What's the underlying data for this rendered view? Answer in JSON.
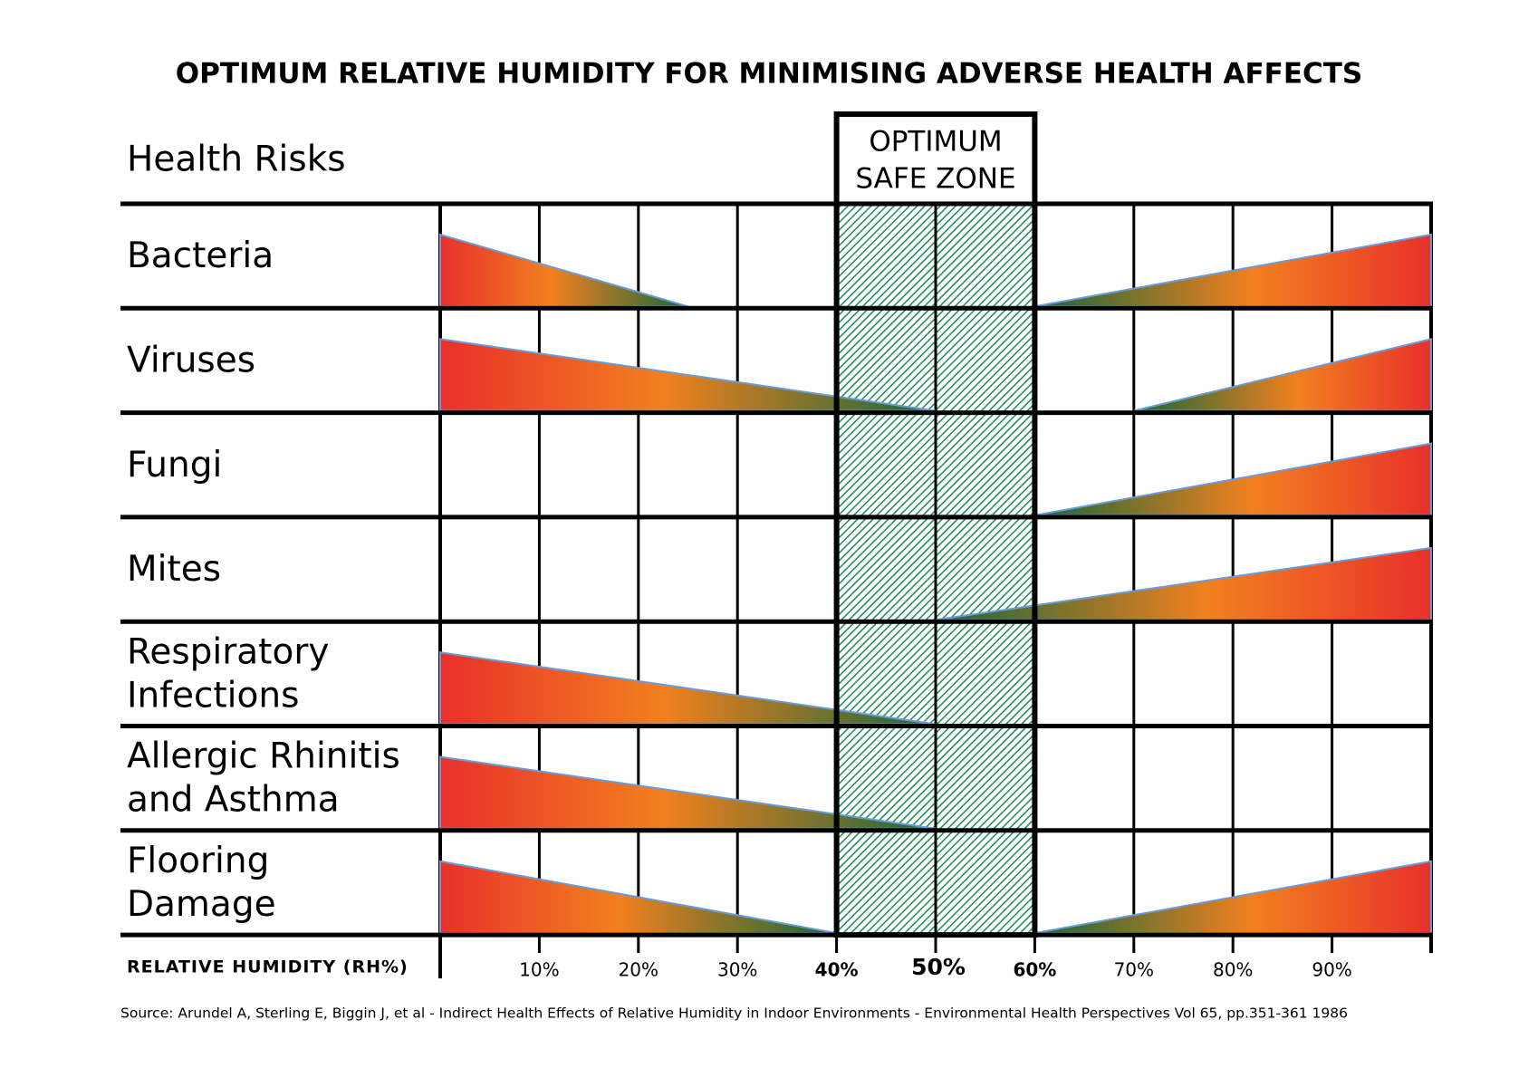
{
  "chart_data": {
    "type": "risk-wedge",
    "title": "OPTIMUM RELATIVE HUMIDITY FOR MINIMISING ADVERSE HEALTH AFFECTS",
    "row_header": "Health Risks",
    "zone_label": [
      "OPTIMUM",
      "SAFE ZONE"
    ],
    "optimum_zone": [
      40,
      60
    ],
    "zone_color": "#1a8a5a",
    "xlabel": "RELATIVE HUMIDITY (RH%)",
    "xlim": [
      0,
      100
    ],
    "xticks": [
      {
        "value": 10,
        "label": "10%"
      },
      {
        "value": 20,
        "label": "20%"
      },
      {
        "value": 30,
        "label": "30%"
      },
      {
        "value": 40,
        "label": "40%"
      },
      {
        "value": 50,
        "label": "50%"
      },
      {
        "value": 60,
        "label": "60%"
      },
      {
        "value": 70,
        "label": "70%"
      },
      {
        "value": 80,
        "label": "80%"
      },
      {
        "value": 90,
        "label": "90%"
      }
    ],
    "grid": true,
    "colors": [
      "#e8302a",
      "#f2801f",
      "#17683a"
    ],
    "rows": [
      {
        "label": [
          "Bacteria"
        ],
        "ranges": [
          [
            0,
            25
          ],
          [
            60,
            100
          ]
        ]
      },
      {
        "label": [
          "Viruses"
        ],
        "ranges": [
          [
            0,
            50
          ],
          [
            70,
            100
          ]
        ]
      },
      {
        "label": [
          "Fungi"
        ],
        "ranges": [
          [
            60,
            100
          ]
        ]
      },
      {
        "label": [
          "Mites"
        ],
        "ranges": [
          [
            50,
            100
          ]
        ]
      },
      {
        "label": [
          "Respiratory",
          "Infections"
        ],
        "ranges": [
          [
            0,
            50
          ]
        ]
      },
      {
        "label": [
          "Allergic Rhinitis",
          "and Asthma"
        ],
        "ranges": [
          [
            0,
            50
          ]
        ]
      },
      {
        "label": [
          "Flooring",
          "Damage"
        ],
        "ranges": [
          [
            0,
            40
          ],
          [
            60,
            100
          ]
        ]
      }
    ],
    "source": "Source: Arundel A, Sterling E, Biggin J, et al - Indirect Health Effects of Relative Humidity in Indoor Environments - Environmental Health Perspectives Vol 65, pp.351-361 1986"
  }
}
